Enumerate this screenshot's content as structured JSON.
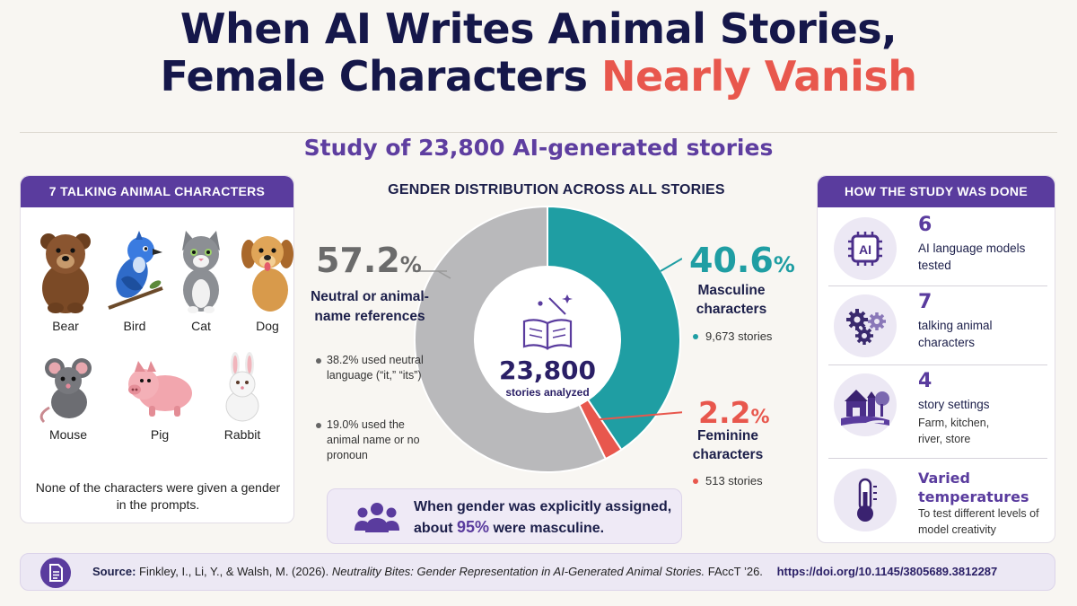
{
  "title": {
    "line1": "When AI Writes Animal Stories,",
    "line2_prefix": "Female Characters ",
    "line2_accent": "Nearly Vanish"
  },
  "subtitle": "Study of 23,800 AI-generated stories",
  "left_panel": {
    "heading": "7 TALKING ANIMAL CHARACTERS",
    "animals": [
      "Bear",
      "Bird",
      "Cat",
      "Dog",
      "Mouse",
      "Pig",
      "Rabbit"
    ],
    "note": "None of the characters were given a gender in the prompts."
  },
  "chart": {
    "heading": "GENDER DISTRIBUTION ACROSS ALL STORIES",
    "center_value": "23,800",
    "center_label": "stories analyzed",
    "neutral": {
      "pct": "57.2",
      "pct_sign": "%",
      "label": "Neutral or animal-name references",
      "bullets": [
        "38.2% used neutral language (“it,” “its”)",
        "19.0% used the animal name or no pronoun"
      ]
    },
    "masculine": {
      "pct": "40.6",
      "pct_sign": "%",
      "label": "Masculine characters",
      "count": "9,673 stories"
    },
    "feminine": {
      "pct": "2.2",
      "pct_sign": "%",
      "label": "Feminine characters",
      "count": "513 stories"
    }
  },
  "chart_data": {
    "type": "pie",
    "title": "GENDER DISTRIBUTION ACROSS ALL STORIES",
    "categories": [
      "Masculine characters",
      "Feminine characters",
      "Neutral or animal-name references"
    ],
    "values": [
      40.6,
      2.2,
      57.2
    ],
    "colors": [
      "#1f9ea3",
      "#e8574d",
      "#b9b9bb"
    ]
  },
  "callout": {
    "text_prefix": "When gender was explicitly assigned, about ",
    "highlight": "95%",
    "text_suffix": " were masculine."
  },
  "right_panel": {
    "heading": "HOW THE STUDY WAS DONE",
    "steps": [
      {
        "num": "6",
        "desc": "AI language models tested",
        "sub": "",
        "icon": "ai-chip-icon"
      },
      {
        "num": "7",
        "desc": "talking animal characters",
        "sub": "",
        "icon": "gears-icon"
      },
      {
        "num": "4",
        "desc": "story settings",
        "sub": "Farm, kitchen, river, store",
        "icon": "farm-scene-icon"
      },
      {
        "num": "Varied temperatures",
        "desc": "",
        "sub": "To test different levels of model creativity",
        "icon": "thermometer-icon"
      }
    ],
    "ai_chip_label": "AI"
  },
  "source": {
    "label": "Source:",
    "authors": "Finkley, I., Li, Y., & Walsh, M. (2026).",
    "paper": "Neutrality Bites: Gender Representation in AI-Generated Animal Stories.",
    "venue": "FAccT ’26.",
    "doi": "https://doi.org/10.1145/3805689.3812287"
  }
}
